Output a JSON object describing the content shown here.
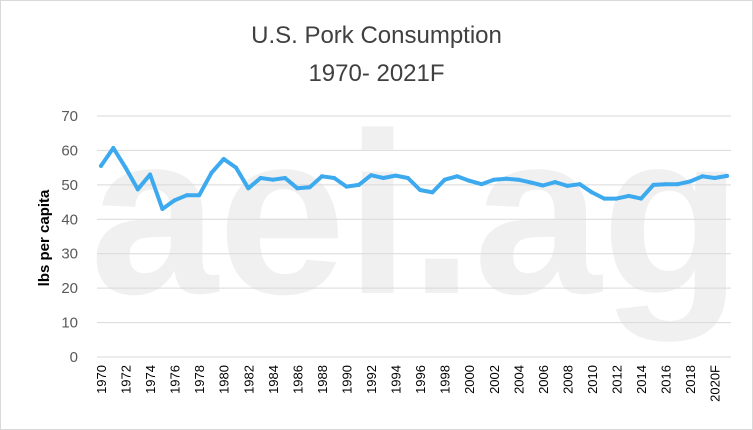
{
  "chart_data": {
    "type": "line",
    "title_line1": "U.S. Pork Consumption",
    "title_line2": "1970- 2021F",
    "ylabel": "lbs per capita",
    "xlabel": "",
    "ylim": [
      0,
      70
    ],
    "yticks": [
      0,
      10,
      20,
      30,
      40,
      50,
      60,
      70
    ],
    "grid": "horizontal",
    "watermark": "aei.ag",
    "line_color": "#3da9ee",
    "x": [
      1970,
      1971,
      1972,
      1973,
      1974,
      1975,
      1976,
      1977,
      1978,
      1979,
      1980,
      1981,
      1982,
      1983,
      1984,
      1985,
      1986,
      1987,
      1988,
      1989,
      1990,
      1991,
      1992,
      1993,
      1994,
      1995,
      1996,
      1997,
      1998,
      1999,
      2000,
      2001,
      2002,
      2003,
      2004,
      2005,
      2006,
      2007,
      2008,
      2009,
      2010,
      2011,
      2012,
      2013,
      2014,
      2015,
      2016,
      2017,
      2018,
      2019,
      2020,
      2021
    ],
    "x_tick_labels": [
      "1970",
      "1972",
      "1974",
      "1976",
      "1978",
      "1980",
      "1982",
      "1984",
      "1986",
      "1988",
      "1990",
      "1992",
      "1994",
      "1996",
      "1998",
      "2000",
      "2002",
      "2004",
      "2006",
      "2008",
      "2010",
      "2012",
      "2014",
      "2016",
      "2018",
      "2020F"
    ],
    "series": [
      {
        "values": [
          55.5,
          60.7,
          55.0,
          48.7,
          53.0,
          43.0,
          45.5,
          47.0,
          47.0,
          53.5,
          57.5,
          55.0,
          49.0,
          52.0,
          51.5,
          52.0,
          49.0,
          49.3,
          52.5,
          52.0,
          49.5,
          50.0,
          52.8,
          52.0,
          52.7,
          52.0,
          48.5,
          47.8,
          51.5,
          52.5,
          51.2,
          50.2,
          51.5,
          51.8,
          51.5,
          50.7,
          49.8,
          50.8,
          49.7,
          50.2,
          47.8,
          46.0,
          46.0,
          46.8,
          46.0,
          50.0,
          50.2,
          50.2,
          51.0,
          52.5,
          52.0,
          52.6
        ]
      }
    ]
  }
}
